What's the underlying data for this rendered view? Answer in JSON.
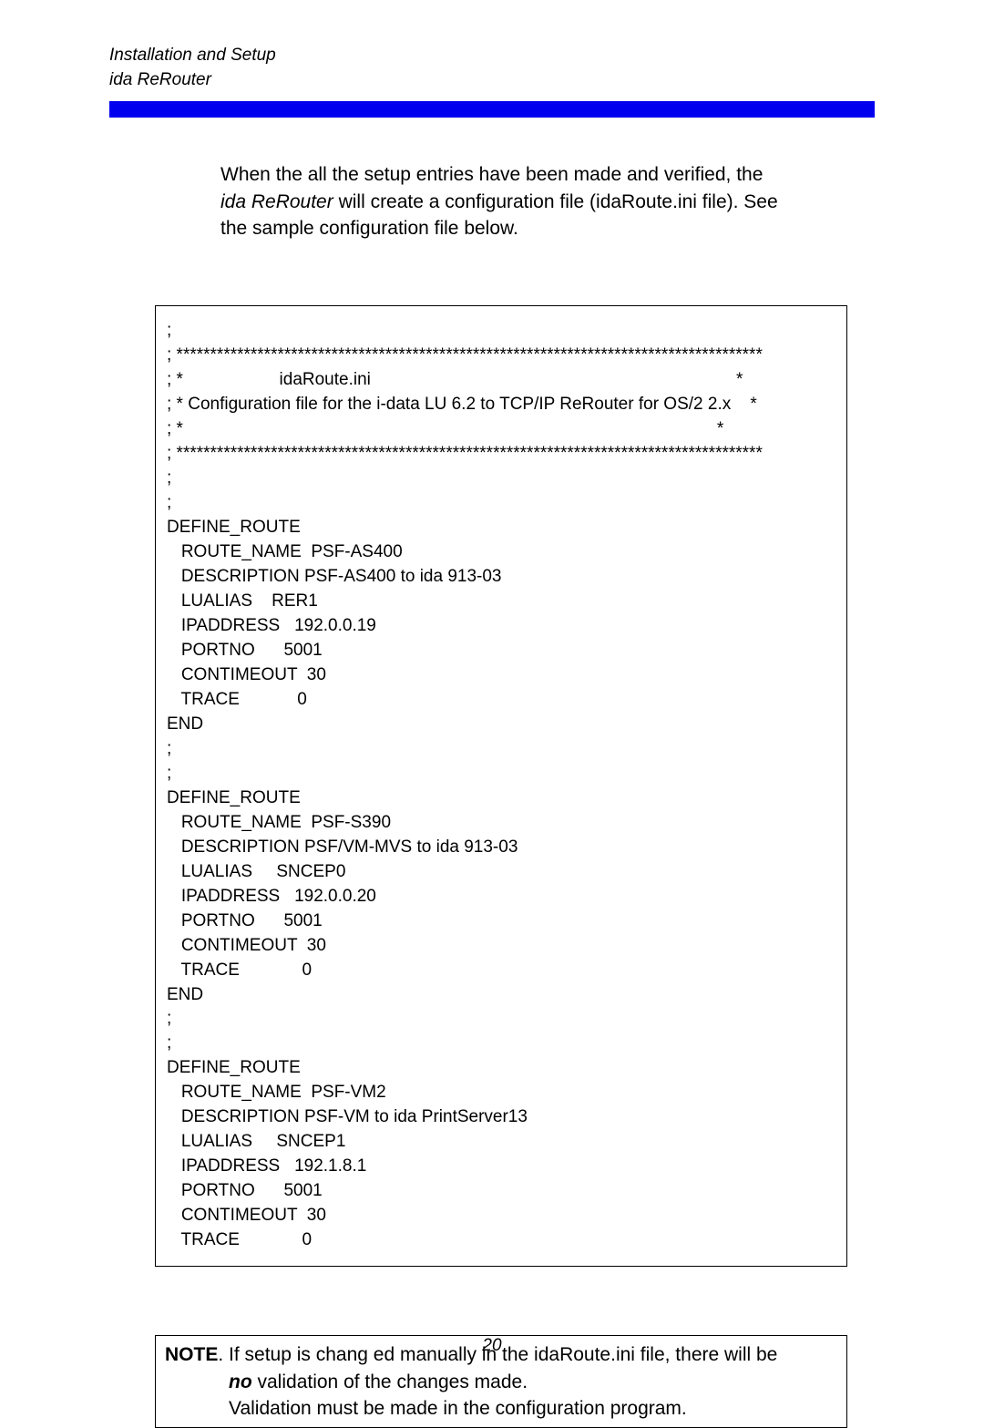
{
  "header": {
    "line1": "Installation and Setup",
    "line2": "ida ReRouter"
  },
  "intro": {
    "before_italic": "When the all the setup entries have been made and verified, the   ",
    "italic": "ida ReRouter",
    "after_italic": " will create a configuration file (idaRoute.ini    file). See the sample configuration file below."
  },
  "config": {
    "stars_line": "; ***************************************************************************************",
    "star_line_left": "; *                                                                                                               *",
    "title_line": "; *                    idaRoute.ini                                                                            *",
    "desc_line": "; * Configuration file for the i-data LU 6.2 to TCP/IP ReRouter for OS/2 2.x    *",
    "semicolon": ";",
    "routes": [
      {
        "define": "DEFINE_ROUTE",
        "name": "   ROUTE_NAME  PSF-AS400",
        "desc": "   DESCRIPTION PSF-AS400 to ida 913-03",
        "lualias": "   LUALIAS    RER1",
        "ip": "   IPADDRESS   192.0.0.19",
        "port": "   PORTNO      5001",
        "timeout": "   CONTIMEOUT  30",
        "trace": "   TRACE            0",
        "end": "END"
      },
      {
        "define": "DEFINE_ROUTE",
        "name": "   ROUTE_NAME  PSF-S390",
        "desc": "   DESCRIPTION PSF/VM-MVS to ida 913-03",
        "lualias": "   LUALIAS     SNCEP0",
        "ip": "   IPADDRESS   192.0.0.20",
        "port": "   PORTNO      5001",
        "timeout": "   CONTIMEOUT  30",
        "trace": "   TRACE             0",
        "end": "END"
      },
      {
        "define": "DEFINE_ROUTE",
        "name": "   ROUTE_NAME  PSF-VM2",
        "desc": "   DESCRIPTION PSF-VM to ida PrintServer13",
        "lualias": "   LUALIAS     SNCEP1",
        "ip": "   IPADDRESS   192.1.8.1",
        "port": "   PORTNO      5001",
        "timeout": "   CONTIMEOUT  30",
        "trace": "   TRACE             0",
        "end": ""
      }
    ]
  },
  "note": {
    "label": "NOTE",
    "text_after_label": ".  If setup is chang ed manually in the idaRoute.ini file, there will be",
    "indent": "            ",
    "bold_italic": "no",
    "after_no": " validation of the changes made.",
    "line3": "            Validation must be made in the configuration program."
  },
  "page_number": "20",
  "colors": {
    "blue_bar": "#0000ee",
    "text": "#000000",
    "background": "#ffffff"
  }
}
